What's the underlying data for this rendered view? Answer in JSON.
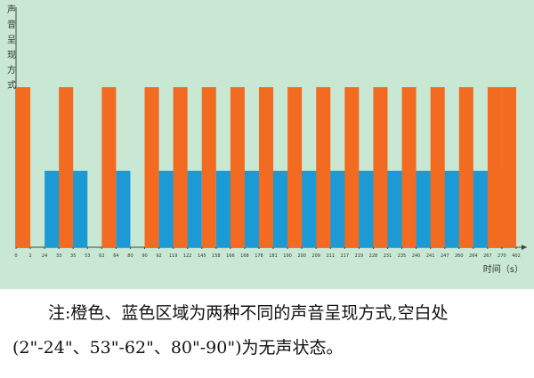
{
  "chart_data": {
    "type": "timeline",
    "y_label": "声音呈现方式",
    "x_label": "时间（s）",
    "xticks": [
      0,
      2,
      24,
      33,
      35,
      53,
      62,
      64,
      80,
      90,
      92,
      119,
      122,
      145,
      158,
      166,
      168,
      178,
      181,
      190,
      200,
      209,
      211,
      217,
      219,
      228,
      231,
      235,
      240,
      241,
      247,
      260,
      264,
      267,
      270,
      402
    ],
    "series": [
      {
        "color": "#1b9ad6",
        "segments": [
          [
            24,
            53
          ],
          [
            64,
            80
          ],
          [
            92,
            145
          ],
          [
            158,
            270
          ]
        ]
      },
      {
        "color": "#f26b21",
        "segments": [
          [
            0,
            2
          ],
          [
            33,
            35
          ],
          [
            62,
            64
          ],
          [
            90,
            92
          ],
          [
            119,
            122
          ],
          [
            145,
            158
          ],
          [
            166,
            168
          ],
          [
            178,
            181
          ],
          [
            190,
            200
          ],
          [
            209,
            211
          ],
          [
            217,
            219
          ],
          [
            228,
            231
          ],
          [
            235,
            240
          ],
          [
            241,
            247
          ],
          [
            260,
            264
          ],
          [
            267,
            270
          ],
          [
            270,
            402
          ]
        ]
      }
    ],
    "caption": "注:橙色、蓝色区域为两种不同的声音呈现方式,空白处(2\"-24\"、53\"-62\"、80\"-90\")为无声状态。"
  }
}
